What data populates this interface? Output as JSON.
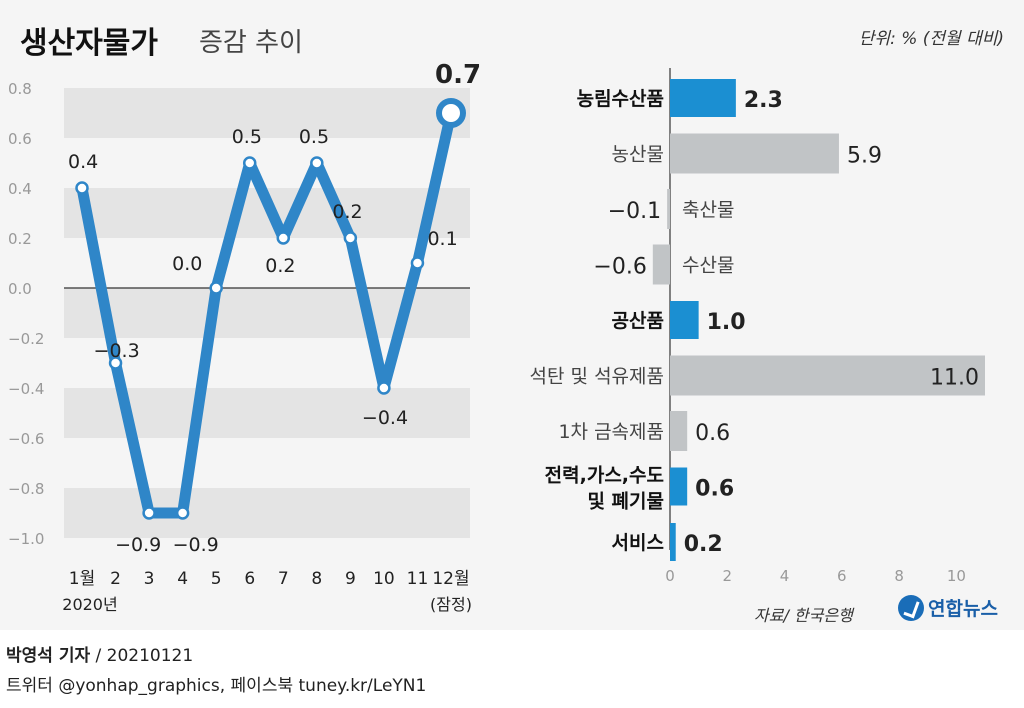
{
  "header": {
    "title": "생산자물가",
    "subtitle": "증감 추이",
    "unit": "단위: % (전월 대비)"
  },
  "chart_data": [
    {
      "type": "line",
      "x": [
        "1월",
        "2",
        "3",
        "4",
        "5",
        "6",
        "7",
        "8",
        "9",
        "10",
        "11",
        "12월"
      ],
      "x_sub": {
        "first": "2020년",
        "last": "(잠정)"
      },
      "values": [
        0.4,
        -0.3,
        -0.9,
        -0.9,
        0.0,
        0.5,
        0.2,
        0.5,
        0.2,
        -0.4,
        0.1,
        0.7
      ],
      "value_labels": [
        "0.4",
        "−0.3",
        "−0.9",
        "−0.9",
        "0.0",
        "0.5",
        "0.2",
        "0.5",
        "0.2",
        "−0.4",
        "0.1",
        "0.7"
      ],
      "ylim": [
        -1.0,
        0.8
      ],
      "yticks": [
        "0.8",
        "0.6",
        "0.4",
        "0.2",
        "0.0",
        "−0.2",
        "−0.4",
        "−0.6",
        "−0.8",
        "−1.0"
      ],
      "line_color": "#2f86c8",
      "highlight_last": true
    },
    {
      "type": "bar",
      "orientation": "horizontal",
      "categories": [
        {
          "label": "농림수산품",
          "value": 2.3,
          "value_label": "2.3",
          "major": true
        },
        {
          "label": "농산물",
          "value": 5.9,
          "value_label": "5.9",
          "major": false
        },
        {
          "label": "축산물",
          "value": -0.1,
          "value_label": "−0.1",
          "major": false
        },
        {
          "label": "수산물",
          "value": -0.6,
          "value_label": "−0.6",
          "major": false
        },
        {
          "label": "공산품",
          "value": 1.0,
          "value_label": "1.0",
          "major": true
        },
        {
          "label": "석탄 및 석유제품",
          "value": 11.0,
          "value_label": "11.0",
          "major": false
        },
        {
          "label": "1차 금속제품",
          "value": 0.6,
          "value_label": "0.6",
          "major": false
        },
        {
          "label": "전력,가스,수도|및 폐기물",
          "value": 0.6,
          "value_label": "0.6",
          "major": true
        },
        {
          "label": "서비스",
          "value": 0.2,
          "value_label": "0.2",
          "major": true
        }
      ],
      "xticks": [
        "0",
        "2",
        "4",
        "6",
        "8",
        "10"
      ],
      "xlim": [
        0,
        11
      ],
      "major_color": "#1b8fd2",
      "minor_color": "#c1c4c6"
    }
  ],
  "footer": {
    "source": "자료/ 한국은행",
    "logo_text": "연합뉴스",
    "byline_name": "박영석 기자",
    "byline_rest": " / 20210121",
    "social": "트위터 @yonhap_graphics, 페이스북 tuney.kr/LeYN1"
  }
}
